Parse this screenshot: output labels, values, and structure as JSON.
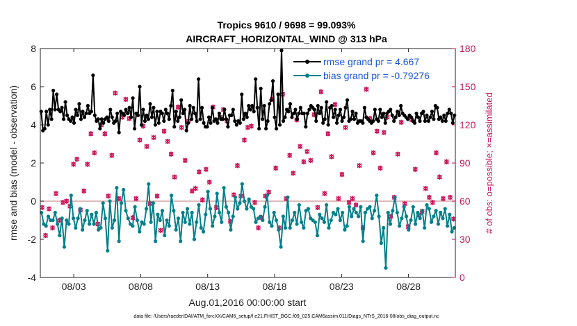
{
  "chart_data": {
    "type": "line",
    "title_line1": "Tropics 9610 / 9698 = 99.093%",
    "title_line2": "AIRCRAFT_HORIZONTAL_WIND @ 313 hPa",
    "xlabel": "Aug.01,2016 00:00:00 start",
    "ylabel": "rmse and bias (model - observation)",
    "y2label": "# of obs: o=possible; ×=assimilated",
    "footnote": "data file: /Users/raeder/DAI/ATM_forcXX/CAM6_setup/f.e21.FHIST_BGC.f09_025.CAM6assim.011/Diags_NTrS_2016-08/obs_diag_output.nc",
    "xlim": [
      0.5,
      31.5
    ],
    "ylim": [
      -4,
      8
    ],
    "y2lim": [
      0,
      180
    ],
    "xticks": [
      3,
      8,
      13,
      18,
      23,
      28
    ],
    "xtick_labels": [
      "08/03",
      "08/08",
      "08/13",
      "08/18",
      "08/23",
      "08/28"
    ],
    "yticks": [
      -4,
      -2,
      0,
      2,
      4,
      6,
      8
    ],
    "ytick_labels": [
      "-4",
      "-2",
      "0",
      "2",
      "4",
      "6",
      "8"
    ],
    "y2ticks": [
      0,
      30,
      60,
      90,
      120,
      150,
      180
    ],
    "y2tick_labels": [
      "0",
      "30",
      "60",
      "90",
      "120",
      "150",
      "180"
    ],
    "colors": {
      "rmse": "#000000",
      "bias": "#00808a",
      "obs": "#cc0e55",
      "zero": "#d4a6a6",
      "axis": "#222222"
    },
    "series": [
      {
        "name": "rmse grand pr = 4.667",
        "key": "rmse",
        "values": [
          4.7,
          3.7,
          3.8,
          4.7,
          4.0,
          4.8,
          4.3,
          5.8,
          4.8,
          5.6,
          4.8,
          4.7,
          4.9,
          4.3,
          5.2,
          4.5,
          4.3,
          4.2,
          4.4,
          4.1,
          4.8,
          4.5,
          5.1,
          4.3,
          4.7,
          4.4,
          4.6,
          5.0,
          4.6,
          4.7,
          6.6,
          4.5,
          4.2,
          4.3,
          3.8,
          4.3,
          4.1,
          4.3,
          4.4,
          4.2,
          4.8,
          4.4,
          4.1,
          4.2,
          4.6,
          3.6,
          4.7,
          4.6,
          4.5,
          4.8,
          4.6,
          4.9,
          4.4,
          5.4,
          3.8,
          4.6,
          4.5,
          6.0,
          4.0,
          4.8,
          4.2,
          4.5,
          4.3,
          5.1,
          4.4,
          4.9,
          4.0,
          4.7,
          4.1,
          4.7,
          4.6,
          4.2,
          4.8,
          4.6,
          4.3,
          5.0,
          5.8,
          3.9,
          4.7,
          4.2,
          4.4,
          5.3,
          4.6,
          4.8,
          3.7,
          4.1,
          5.0,
          4.3,
          4.9,
          4.6,
          4.2,
          6.4,
          4.3,
          4.9,
          4.1,
          3.9,
          3.9,
          4.4,
          4.1,
          4.9,
          4.2,
          4.3,
          4.1,
          4.6,
          4.3,
          4.3,
          4.8,
          4.3,
          3.9,
          4.5,
          4.5,
          4.8,
          4.2,
          4.0,
          4.2,
          4.1,
          5.6,
          4.3,
          4.6,
          4.4,
          5.0,
          4.8,
          5.0,
          4.7,
          6.4,
          4.9,
          3.8,
          5.9,
          4.3,
          5.0,
          3.8,
          4.2,
          5.1,
          5.3,
          6.3,
          4.4,
          3.8,
          5.6,
          4.0,
          7.9,
          4.2,
          4.4,
          4.8,
          4.7,
          5.1,
          4.4,
          4.6,
          4.8,
          4.3,
          4.6,
          4.9,
          4.6,
          4.6,
          3.9,
          4.6,
          4.8,
          5.0,
          4.9,
          4.8,
          4.2,
          5.0,
          4.6,
          4.9,
          4.1,
          4.3,
          5.2,
          4.0,
          4.9,
          5.0,
          4.4,
          4.8,
          4.1,
          4.5,
          4.8,
          4.2,
          4.4,
          4.9,
          5.3,
          4.2,
          4.3,
          4.7,
          4.3,
          4.6,
          4.1,
          4.2,
          4.2,
          4.1,
          4.9,
          4.4,
          4.3,
          4.2,
          4.1,
          4.2,
          4.8,
          4.3,
          4.2,
          4.8,
          4.4,
          4.6,
          4.1,
          4.6,
          4.7,
          4.8,
          4.5,
          4.2,
          4.4,
          4.7,
          4.5,
          5.0,
          4.6,
          4.5,
          4.4,
          4.3,
          4.5,
          4.4,
          4.2,
          4.1,
          4.6,
          4.4,
          4.2,
          4.6,
          4.7,
          4.2,
          4.5,
          4.2,
          4.4,
          4.7,
          4.3,
          5.0,
          4.9,
          4.3,
          4.4,
          4.2,
          4.5,
          4.2,
          4.6,
          4.8,
          4.6,
          4.1,
          4.5
        ]
      },
      {
        "name": "bias grand pr = -0.79276",
        "key": "bias",
        "values": [
          -0.6,
          -1.2,
          -1.3,
          -0.8,
          -1.0,
          -1.0,
          -0.6,
          -1.2,
          -1.8,
          -0.9,
          -2.4,
          -1.0,
          -1.2,
          0.3,
          -0.9,
          -1.4,
          -0.9,
          -0.4,
          -1.5,
          -1.0,
          -0.5,
          -1.2,
          -0.7,
          -1.2,
          -0.6,
          -1.5,
          -1.4,
          -0.1,
          -0.9,
          -2.6,
          0.0,
          -1.4,
          -1.0,
          0.7,
          -2.1,
          -0.1,
          0.6,
          -0.5,
          -0.9,
          -1.2,
          -1.3,
          -0.3,
          -1.0,
          -1.6,
          -1.1,
          -1.2,
          -0.4,
          0.9,
          -1.1,
          -0.1,
          -2.1,
          -0.7,
          -1.0,
          -0.5,
          -1.8,
          -1.0,
          -1.3,
          0.3,
          -0.5,
          -1.5,
          -0.9,
          -2.1,
          -0.6,
          -1.1,
          -0.4,
          -1.2,
          -0.6,
          -2.0,
          -1.1,
          -0.2,
          -1.4,
          -1.6,
          -0.7,
          0.5,
          -0.4,
          -1.3,
          -0.8,
          0.4,
          -0.6,
          -1.1,
          0.7,
          -0.3,
          -0.6,
          -1.5,
          -0.8,
          0.2,
          -0.4,
          -0.1,
          0.9,
          0.0,
          -0.4,
          0.1,
          -0.3,
          -0.4,
          -1.1,
          -0.9,
          -0.8,
          -1.0,
          -0.3,
          0.3,
          -1.1,
          -1.3,
          -0.6,
          -1.0,
          -1.5,
          -2.4,
          -0.8,
          -1.4,
          0.2,
          -1.4,
          -1.0,
          -0.6,
          -1.2,
          -0.2,
          -1.1,
          -1.4,
          -0.5,
          -0.4,
          -0.9,
          -1.0,
          -1.1,
          -1.8,
          -0.7,
          -0.9,
          -1.1,
          -0.2,
          -1.4,
          -1.0,
          -0.6,
          -0.7,
          -0.4,
          -1.0,
          -0.6,
          -1.5,
          -1.3,
          -0.3,
          -0.8,
          -0.4,
          -0.6,
          -0.8,
          -0.3,
          -2.1,
          -0.6,
          -0.4,
          -0.3,
          -0.9,
          -0.5,
          0.3,
          -0.8,
          -2.2,
          -1.4,
          -3.5,
          -0.6,
          -1.2,
          -0.5,
          0.2,
          -0.6,
          -1.3,
          -0.9,
          -0.3,
          -0.8,
          -1.5,
          -1.0,
          -0.3,
          -1.2,
          -0.6,
          -0.9,
          -0.5,
          -1.4,
          -0.2,
          -0.4,
          -1.1,
          -0.8,
          -0.5,
          -1.2,
          -0.6,
          -0.9,
          -0.4,
          -1.3,
          -0.7,
          -1.6,
          -1.4
        ]
      }
    ],
    "obs_possible": [
      55,
      33,
      54,
      39,
      66,
      45,
      59,
      60,
      56,
      89,
      93,
      53,
      68,
      89,
      113,
      98,
      42,
      120,
      113,
      64,
      96,
      145,
      62,
      126,
      140,
      125,
      47,
      62,
      108,
      119,
      103,
      58,
      110,
      64,
      37,
      115,
      107,
      97,
      79,
      134,
      118,
      92,
      123,
      68,
      70,
      83,
      61,
      85,
      75,
      134,
      55,
      126,
      132,
      123,
      44,
      65,
      88,
      64,
      108,
      118,
      119,
      59,
      39,
      47,
      64,
      67,
      140,
      86,
      39,
      144,
      62,
      96,
      82,
      124,
      103,
      91,
      99,
      92,
      128,
      55,
      146,
      66,
      113,
      95,
      136,
      62,
      81,
      118,
      59,
      62,
      57,
      88,
      39,
      148,
      125,
      98,
      115,
      86,
      114,
      126,
      48,
      63,
      97,
      122,
      58,
      40,
      124,
      85,
      49,
      52,
      70,
      63,
      59,
      98,
      79,
      62,
      91,
      63,
      46
    ],
    "obs_assimilated": [
      55,
      33,
      54,
      39,
      66,
      45,
      59,
      60,
      56,
      89,
      93,
      53,
      68,
      89,
      113,
      98,
      42,
      120,
      113,
      64,
      96,
      145,
      62,
      126,
      140,
      125,
      47,
      62,
      108,
      119,
      103,
      58,
      110,
      64,
      37,
      115,
      107,
      97,
      79,
      134,
      118,
      92,
      123,
      68,
      70,
      83,
      61,
      85,
      75,
      134,
      55,
      126,
      132,
      123,
      44,
      65,
      88,
      64,
      108,
      118,
      119,
      59,
      39,
      47,
      64,
      67,
      140,
      86,
      39,
      144,
      62,
      96,
      82,
      124,
      103,
      91,
      99,
      92,
      128,
      55,
      146,
      66,
      113,
      95,
      136,
      62,
      81,
      118,
      59,
      62,
      57,
      88,
      39,
      148,
      125,
      98,
      115,
      86,
      114,
      126,
      48,
      63,
      97,
      122,
      58,
      40,
      124,
      85,
      49,
      52,
      70,
      63,
      59,
      98,
      79,
      62,
      91,
      63,
      46
    ]
  }
}
